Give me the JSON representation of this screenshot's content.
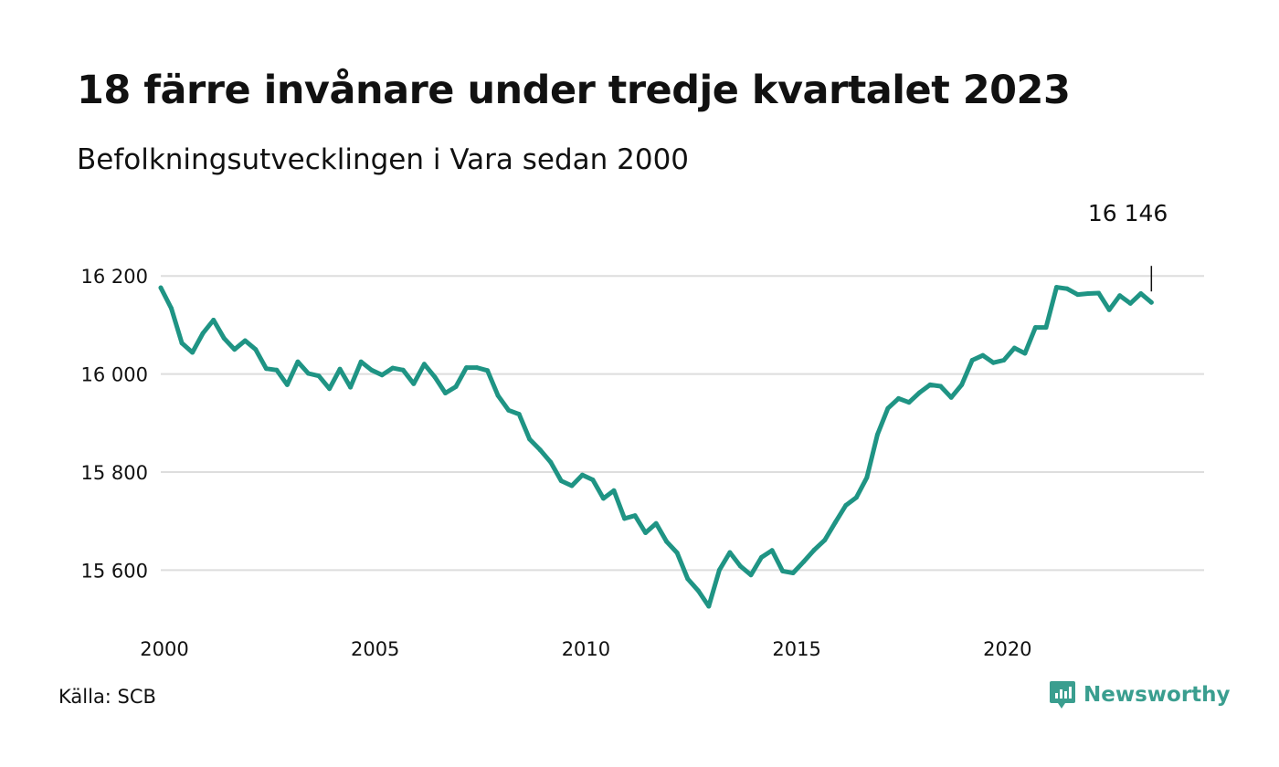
{
  "header": {
    "title": "18 färre invånare under tredje kvartalet 2023",
    "subtitle": "Befolkningsutvecklingen i Vara sedan 2000"
  },
  "footer": {
    "source": "Källa: SCB",
    "brand": "Newsworthy"
  },
  "colors": {
    "line": "#1f9484",
    "grid": "#dddddd",
    "brand": "#3a9e8f"
  },
  "chart_data": {
    "type": "line",
    "title": "18 färre invånare under tredje kvartalet 2023",
    "subtitle": "Befolkningsutvecklingen i Vara sedan 2000",
    "xlabel": "",
    "ylabel": "",
    "xlim": [
      2000,
      2024.75
    ],
    "ylim": [
      15500,
      16260
    ],
    "yticks": [
      15600,
      15800,
      16000,
      16200
    ],
    "ytick_labels": [
      "15 600",
      "15 800",
      "16 000",
      "16 200"
    ],
    "xticks": [
      2000,
      2005,
      2010,
      2015,
      2020
    ],
    "xtick_labels": [
      "2000",
      "2005",
      "2010",
      "2015",
      "2020"
    ],
    "grid": true,
    "annotation": {
      "label": "16 146",
      "x": 2023.5,
      "y": 16146
    },
    "series": [
      {
        "x": [
          2000,
          2000.25,
          2000.5,
          2000.75,
          2001,
          2001.25,
          2001.5,
          2001.75,
          2002,
          2002.25,
          2002.5,
          2002.75,
          2003,
          2003.25,
          2003.5,
          2003.75,
          2004,
          2004.25,
          2004.5,
          2004.75,
          2005,
          2005.25,
          2005.5,
          2005.75,
          2006,
          2006.25,
          2006.5,
          2006.75,
          2007,
          2007.25,
          2007.5,
          2007.75,
          2008,
          2008.25,
          2008.5,
          2008.75,
          2009,
          2009.25,
          2009.5,
          2009.75,
          2010,
          2010.25,
          2010.5,
          2010.75,
          2011,
          2011.25,
          2011.5,
          2011.75,
          2012,
          2012.25,
          2012.5,
          2012.75,
          2013,
          2013.25,
          2013.5,
          2013.75,
          2014,
          2014.25,
          2014.5,
          2014.75,
          2015,
          2015.25,
          2015.5,
          2015.75,
          2016,
          2016.25,
          2016.5,
          2016.75,
          2017,
          2017.25,
          2017.5,
          2017.75,
          2018,
          2018.25,
          2018.5,
          2018.75,
          2019,
          2019.25,
          2019.5,
          2019.75,
          2020,
          2020.25,
          2020.5,
          2020.75,
          2021,
          2021.25,
          2021.5,
          2021.75,
          2022,
          2022.25,
          2022.5,
          2022.75,
          2023,
          2023.25,
          2023.5
        ],
        "values": [
          16176,
          16134,
          16063,
          16044,
          16083,
          16110,
          16073,
          16050,
          16068,
          16050,
          16011,
          16008,
          15978,
          16025,
          16001,
          15996,
          15970,
          16010,
          15973,
          16025,
          16008,
          15998,
          16012,
          16008,
          15980,
          16020,
          15994,
          15961,
          15974,
          16013,
          16013,
          16007,
          15956,
          15926,
          15918,
          15867,
          15845,
          15820,
          15782,
          15772,
          15794,
          15784,
          15746,
          15762,
          15705,
          15711,
          15676,
          15695,
          15658,
          15635,
          15582,
          15558,
          15526,
          15600,
          15636,
          15608,
          15590,
          15626,
          15640,
          15598,
          15594,
          15617,
          15641,
          15661,
          15697,
          15732,
          15748,
          15789,
          15876,
          15930,
          15950,
          15942,
          15962,
          15978,
          15975,
          15952,
          15978,
          16028,
          16038,
          16023,
          16028,
          16053,
          16042,
          16095,
          16095,
          16177,
          16174,
          16162,
          16164,
          16165,
          16131,
          16160,
          16144,
          16164,
          16146
        ]
      }
    ]
  }
}
